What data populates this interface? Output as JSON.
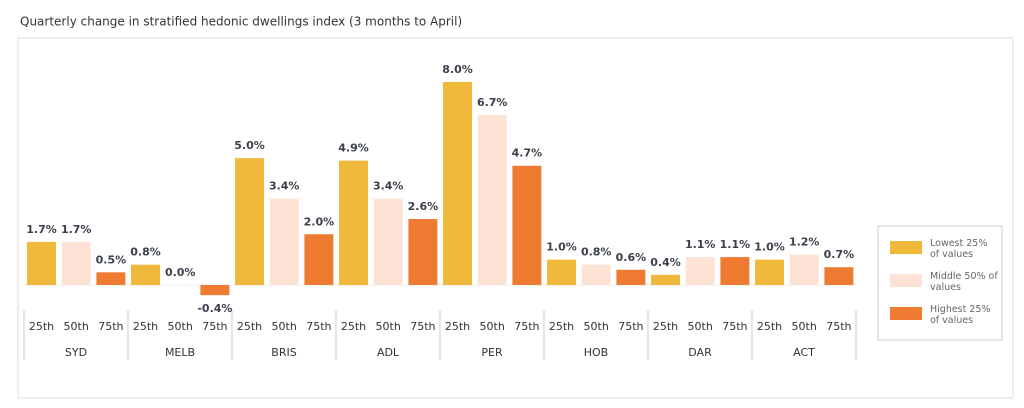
{
  "chart_data": {
    "type": "bar",
    "title": "Quarterly change in stratified hedonic dwellings index (3 months to April)",
    "categories": [
      "SYD",
      "MELB",
      "BRIS",
      "ADL",
      "PER",
      "HOB",
      "DAR",
      "ACT"
    ],
    "subcategories": [
      "25th",
      "50th",
      "75th"
    ],
    "series": [
      {
        "name": "Lowest 25% of values",
        "color": "#f0b93b",
        "values": [
          1.7,
          0.8,
          5.0,
          4.9,
          8.0,
          1.0,
          0.4,
          1.0
        ],
        "value_labels": [
          "1.7%",
          "0.8%",
          "5.0%",
          "4.9%",
          "8.0%",
          "1.0%",
          "0.4%",
          "1.0%"
        ]
      },
      {
        "name": "Middle 50% of values",
        "color": "#fde3d6",
        "values": [
          1.7,
          0.0,
          3.4,
          3.4,
          6.7,
          0.8,
          1.1,
          1.2
        ],
        "value_labels": [
          "1.7%",
          "0.0%",
          "3.4%",
          "3.4%",
          "6.7%",
          "0.8%",
          "1.1%",
          "1.2%"
        ]
      },
      {
        "name": "Highest 25% of values",
        "color": "#ef7a31",
        "values": [
          0.5,
          -0.4,
          2.0,
          2.6,
          4.7,
          0.6,
          1.1,
          0.7
        ],
        "value_labels": [
          "0.5%",
          "-0.4%",
          "2.0%",
          "2.6%",
          "4.7%",
          "0.6%",
          "1.1%",
          "0.7%"
        ]
      }
    ],
    "legend": "right"
  }
}
